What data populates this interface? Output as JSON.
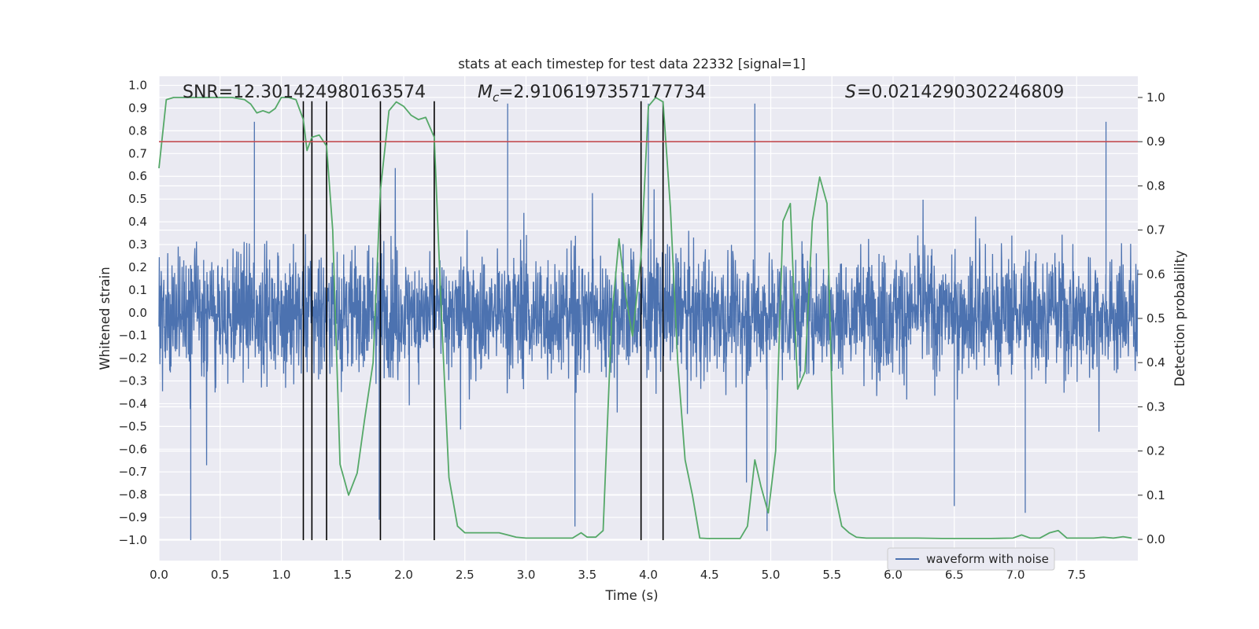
{
  "chart_data": {
    "type": "line",
    "title": "stats at each timestep for test data 22332 [signal=1]",
    "xlabel": "Time (s)",
    "ylabel": "Whitened strain",
    "y2label": "Detection probability",
    "xlim": [
      0.0,
      8.0
    ],
    "ylim": [
      -1.09,
      1.04
    ],
    "y2lim": [
      -0.048,
      1.048
    ],
    "x_ticks": [
      "0.0",
      "0.5",
      "1.0",
      "1.5",
      "2.0",
      "2.5",
      "3.0",
      "3.5",
      "4.0",
      "4.5",
      "5.0",
      "5.5",
      "6.0",
      "6.5",
      "7.0",
      "7.5"
    ],
    "y_ticks": [
      "1.0",
      "0.9",
      "0.8",
      "0.7",
      "0.6",
      "0.5",
      "0.4",
      "0.3",
      "0.2",
      "0.1",
      "0.0",
      "−0.1",
      "−0.2",
      "−0.3",
      "−0.4",
      "−0.5",
      "−0.6",
      "−0.7",
      "−0.8",
      "−0.9",
      "−1.0"
    ],
    "y2_ticks": [
      "1.0",
      "0.9",
      "0.8",
      "0.7",
      "0.6",
      "0.5",
      "0.4",
      "0.3",
      "0.2",
      "0.1",
      "0.0"
    ],
    "annotations": {
      "snr": "SNR=12.301424980163574",
      "mc_value": "=2.9106197357177734",
      "s_value": "=0.0214290302246809"
    },
    "threshold": {
      "value": 0.9,
      "axis": "y2",
      "color": "#c44e52"
    },
    "vlines": {
      "x": [
        1.18,
        1.25,
        1.37,
        1.81,
        2.25,
        3.94,
        4.12
      ],
      "ymin": -1.0,
      "ymax": 0.93,
      "color": "#000000"
    },
    "series": [
      {
        "name": "waveform with noise",
        "axis": "y",
        "color": "#4c72b0",
        "description": "dense noisy strain, amplitude roughly within ±0.55",
        "spikes": [
          {
            "x": 0.26,
            "y": -1.0
          },
          {
            "x": 0.78,
            "y": 0.84
          },
          {
            "x": 1.8,
            "y": -0.91
          },
          {
            "x": 2.85,
            "y": 0.92
          },
          {
            "x": 3.4,
            "y": -0.94
          },
          {
            "x": 4.0,
            "y": 0.92
          },
          {
            "x": 4.87,
            "y": 0.92
          },
          {
            "x": 4.97,
            "y": -0.96
          },
          {
            "x": 6.5,
            "y": -0.85
          },
          {
            "x": 7.08,
            "y": -0.88
          },
          {
            "x": 7.74,
            "y": 0.84
          }
        ]
      },
      {
        "name": "detection probability",
        "axis": "y2",
        "color": "#55a868",
        "x": [
          0.0,
          0.06,
          0.12,
          0.2,
          0.3,
          0.4,
          0.5,
          0.6,
          0.7,
          0.75,
          0.8,
          0.85,
          0.9,
          0.95,
          1.0,
          1.06,
          1.12,
          1.18,
          1.21,
          1.25,
          1.31,
          1.37,
          1.42,
          1.48,
          1.55,
          1.62,
          1.68,
          1.75,
          1.81,
          1.88,
          1.94,
          2.0,
          2.06,
          2.12,
          2.18,
          2.25,
          2.31,
          2.37,
          2.44,
          2.5,
          2.56,
          2.62,
          2.7,
          2.78,
          2.85,
          2.92,
          3.0,
          3.08,
          3.15,
          3.22,
          3.3,
          3.38,
          3.45,
          3.5,
          3.57,
          3.63,
          3.7,
          3.76,
          3.81,
          3.87,
          3.94,
          4.0,
          4.06,
          4.12,
          4.18,
          4.24,
          4.3,
          4.36,
          4.42,
          4.48,
          4.55,
          4.62,
          4.68,
          4.75,
          4.81,
          4.87,
          4.92,
          4.98,
          5.04,
          5.1,
          5.16,
          5.22,
          5.28,
          5.34,
          5.4,
          5.46,
          5.52,
          5.58,
          5.64,
          5.7,
          5.78,
          5.86,
          5.94,
          6.05,
          6.2,
          6.4,
          6.6,
          6.8,
          6.98,
          7.05,
          7.12,
          7.2,
          7.28,
          7.35,
          7.42,
          7.48,
          7.56,
          7.64,
          7.72,
          7.8,
          7.88,
          7.95
        ],
        "y": [
          0.84,
          0.995,
          1.0,
          1.0,
          1.0,
          1.0,
          1.0,
          1.0,
          0.995,
          0.985,
          0.965,
          0.97,
          0.965,
          0.975,
          1.0,
          1.0,
          0.995,
          0.95,
          0.88,
          0.91,
          0.915,
          0.89,
          0.7,
          0.17,
          0.1,
          0.15,
          0.27,
          0.4,
          0.79,
          0.97,
          0.99,
          0.98,
          0.96,
          0.95,
          0.955,
          0.91,
          0.5,
          0.14,
          0.03,
          0.015,
          0.015,
          0.015,
          0.015,
          0.015,
          0.01,
          0.005,
          0.003,
          0.003,
          0.003,
          0.003,
          0.003,
          0.003,
          0.015,
          0.005,
          0.005,
          0.02,
          0.5,
          0.68,
          0.56,
          0.46,
          0.64,
          0.98,
          1.0,
          0.99,
          0.75,
          0.4,
          0.18,
          0.1,
          0.003,
          0.002,
          0.002,
          0.002,
          0.002,
          0.002,
          0.03,
          0.18,
          0.12,
          0.06,
          0.2,
          0.72,
          0.76,
          0.34,
          0.38,
          0.72,
          0.82,
          0.76,
          0.11,
          0.03,
          0.015,
          0.005,
          0.003,
          0.003,
          0.003,
          0.003,
          0.003,
          0.002,
          0.002,
          0.002,
          0.003,
          0.01,
          0.003,
          0.003,
          0.015,
          0.02,
          0.003,
          0.003,
          0.003,
          0.003,
          0.005,
          0.003,
          0.006,
          0.003
        ]
      }
    ],
    "legend": {
      "entries": [
        "waveform with noise"
      ],
      "placement": "lower-right"
    }
  }
}
